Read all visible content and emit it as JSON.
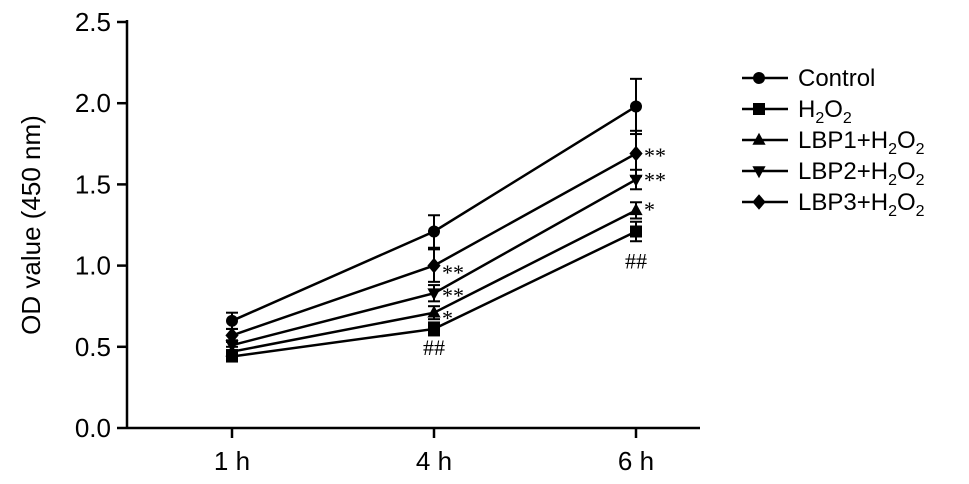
{
  "chart_data": {
    "type": "line",
    "title": "",
    "xlabel": "",
    "ylabel": "OD value (450 nm)",
    "categories": [
      "1 h",
      "4 h",
      "6 h"
    ],
    "ylim": [
      0,
      2.5
    ],
    "yticks": [
      "0.0",
      "0.5",
      "1.0",
      "1.5",
      "2.0",
      "2.5"
    ],
    "grid": false,
    "legend_position": "right",
    "series": [
      {
        "name": "Control",
        "name_html": "Control",
        "marker": "circle",
        "values": [
          0.66,
          1.21,
          1.98
        ],
        "errors": [
          0.05,
          0.1,
          0.17
        ]
      },
      {
        "name": "H2O2",
        "name_html": "H<tspan dy='6' font-size='16'>2</tspan><tspan dy='-6'>O</tspan><tspan dy='6' font-size='16'>2</tspan>",
        "marker": "square",
        "values": [
          0.44,
          0.61,
          1.21
        ],
        "errors": [
          0.03,
          0.04,
          0.06
        ]
      },
      {
        "name": "LBP1+H2O2",
        "name_html": "LBP1+H<tspan dy='6' font-size='16'>2</tspan><tspan dy='-6'>O</tspan><tspan dy='6' font-size='16'>2</tspan>",
        "marker": "triangle-up",
        "values": [
          0.47,
          0.71,
          1.34
        ],
        "errors": [
          0.03,
          0.04,
          0.05
        ]
      },
      {
        "name": "LBP2+H2O2",
        "name_html": "LBP2+H<tspan dy='6' font-size='16'>2</tspan><tspan dy='-6'>O</tspan><tspan dy='6' font-size='16'>2</tspan>",
        "marker": "triangle-down",
        "values": [
          0.51,
          0.83,
          1.53
        ],
        "errors": [
          0.03,
          0.05,
          0.06
        ]
      },
      {
        "name": "LBP3+H2O2",
        "name_html": "LBP3+H<tspan dy='6' font-size='16'>2</tspan><tspan dy='-6'>O</tspan><tspan dy='6' font-size='16'>2</tspan>",
        "marker": "diamond",
        "values": [
          0.57,
          1.0,
          1.69
        ],
        "errors": [
          0.04,
          0.1,
          0.14
        ]
      }
    ],
    "annotations": [
      {
        "text": "##",
        "x": "4 h",
        "y": 0.5
      },
      {
        "text": "##",
        "x": "6 h",
        "y": 1.03
      },
      {
        "text": "**",
        "x": "4 h",
        "y": 0.96
      },
      {
        "text": "**",
        "x": "4 h",
        "y": 0.82
      },
      {
        "text": "*",
        "x": "4 h",
        "y": 0.68
      },
      {
        "text": "**",
        "x": "6 h",
        "y": 1.68
      },
      {
        "text": "**",
        "x": "6 h",
        "y": 1.53
      },
      {
        "text": "*",
        "x": "6 h",
        "y": 1.35
      }
    ]
  }
}
